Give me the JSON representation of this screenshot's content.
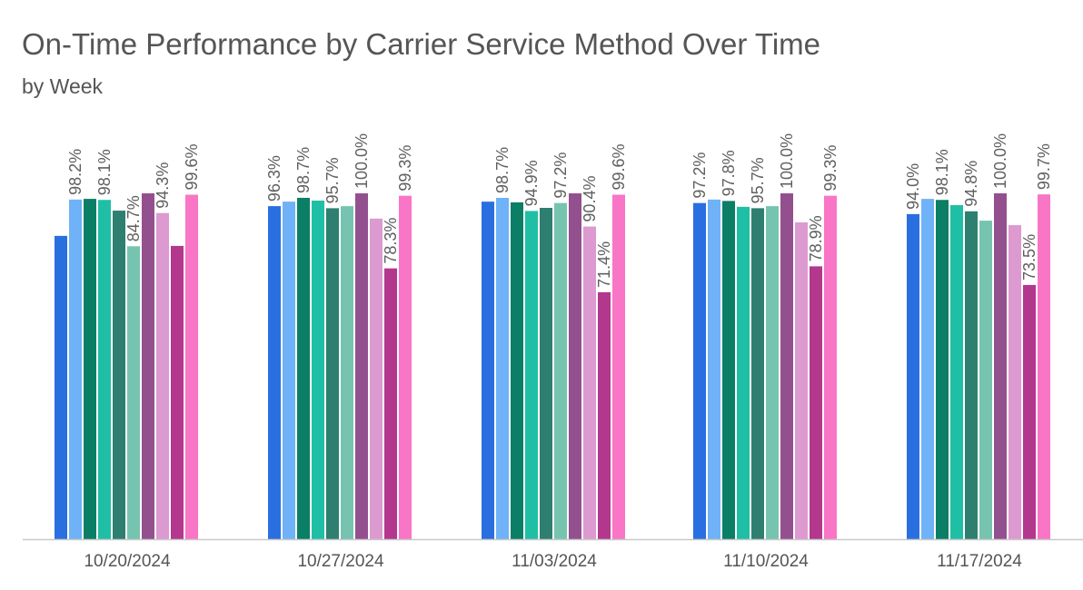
{
  "chart_data": {
    "type": "bar",
    "title": "On-Time Performance by Carrier Service Method Over Time",
    "subtitle": "by Week",
    "xlabel": "",
    "ylabel": "",
    "ylim": [
      0,
      100
    ],
    "grid": false,
    "legend": "none",
    "categories": [
      "10/20/2024",
      "10/27/2024",
      "11/03/2024",
      "11/10/2024",
      "11/17/2024"
    ],
    "series": [
      {
        "color": "#2a6fe0",
        "values": [
          87.7,
          96.3,
          97.6,
          97.2,
          94.0
        ]
      },
      {
        "color": "#6fb2f7",
        "values": [
          98.2,
          97.6,
          98.7,
          98.2,
          98.4
        ]
      },
      {
        "color": "#0b7e66",
        "values": [
          98.4,
          98.7,
          97.4,
          97.8,
          98.1
        ]
      },
      {
        "color": "#1fbfa5",
        "values": [
          98.1,
          97.9,
          94.9,
          96.1,
          96.6
        ]
      },
      {
        "color": "#2e7f6f",
        "values": [
          95.0,
          95.7,
          95.8,
          95.7,
          94.8
        ]
      },
      {
        "color": "#76c4b0",
        "values": [
          84.7,
          96.3,
          97.2,
          96.3,
          92.1
        ]
      },
      {
        "color": "#93508f",
        "values": [
          100.0,
          100.0,
          100.0,
          100.0,
          100.0
        ]
      },
      {
        "color": "#dc9ad0",
        "values": [
          94.3,
          92.7,
          90.4,
          91.6,
          90.8
        ]
      },
      {
        "color": "#b3378d",
        "values": [
          84.8,
          78.3,
          71.4,
          78.9,
          73.5
        ]
      },
      {
        "color": "#f975c6",
        "values": [
          99.6,
          99.3,
          99.6,
          99.3,
          99.7
        ]
      }
    ],
    "data_labels": [
      [
        "98.2%",
        "98.1%",
        "84.7%",
        "94.3%",
        "99.6%"
      ],
      [
        "96.3%",
        "98.7%",
        "95.7%",
        "100.0%",
        "78.3%",
        "99.3%"
      ],
      [
        "98.7%",
        "94.9%",
        "97.2%",
        "90.4%",
        "71.4%",
        "99.6%"
      ],
      [
        "97.2%",
        "97.8%",
        "95.7%",
        "100.0%",
        "78.9%",
        "99.3%"
      ],
      [
        "94.0%",
        "98.1%",
        "94.8%",
        "100.0%",
        "73.5%",
        "99.7%"
      ]
    ],
    "data_label_series": [
      [
        1,
        3,
        5,
        7,
        9
      ],
      [
        0,
        2,
        4,
        6,
        8,
        9
      ],
      [
        1,
        3,
        5,
        7,
        8,
        9
      ],
      [
        0,
        2,
        4,
        6,
        8,
        9
      ],
      [
        0,
        2,
        4,
        6,
        8,
        9
      ]
    ],
    "axis_color": "#c8c8c8",
    "label_color": "#5f5f5f"
  }
}
